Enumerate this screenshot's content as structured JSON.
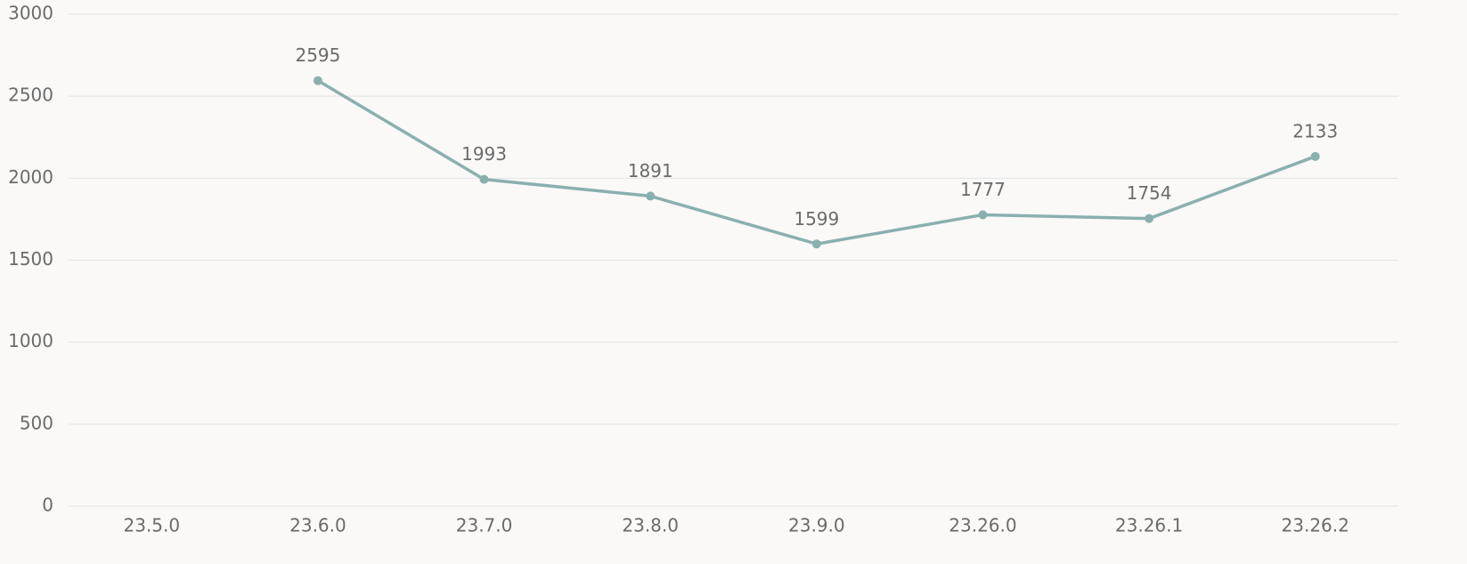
{
  "chart_data": {
    "type": "line",
    "categories": [
      "23.5.0",
      "23.6.0",
      "23.7.0",
      "23.8.0",
      "23.9.0",
      "23.26.0",
      "23.26.1",
      "23.26.2"
    ],
    "values": [
      null,
      2595,
      1993,
      1891,
      1599,
      1777,
      1754,
      2133
    ],
    "color": "#8ab0ae",
    "ylim": [
      0,
      3000
    ],
    "yticks": [
      0,
      500,
      1000,
      1500,
      2000,
      2500,
      3000
    ],
    "grid": true
  }
}
